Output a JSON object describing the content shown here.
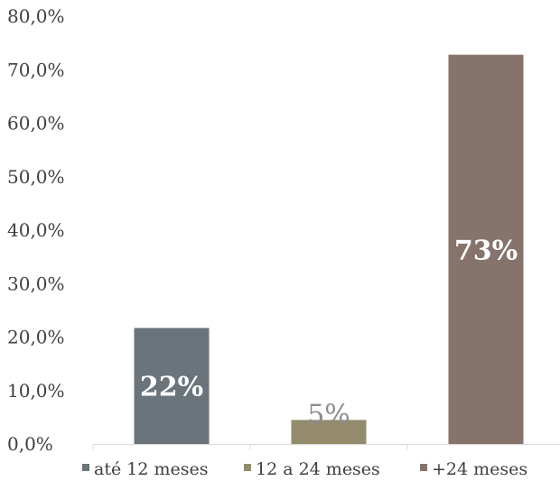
{
  "chart_data": {
    "type": "bar",
    "categories": [
      "até 12 meses",
      "12 a 24 meses",
      "+24 meses"
    ],
    "values": [
      21.7,
      4.5,
      72.8
    ],
    "data_labels": [
      "22%",
      "5%",
      "73%"
    ],
    "ylim": [
      0,
      80
    ],
    "y_ticks": [
      "0,0%",
      "10,0%",
      "20,0%",
      "30,0%",
      "40,0%",
      "50,0%",
      "60,0%",
      "70,0%",
      "80,0%"
    ],
    "y_tick_values": [
      0,
      10,
      20,
      30,
      40,
      50,
      60,
      70,
      80
    ],
    "colors": [
      "#6b747b",
      "#938b6b",
      "#86736b"
    ],
    "data_label_colors": [
      "#ffffff",
      "#8c8c8c",
      "#ffffff"
    ],
    "legend": [
      "até 12 meses",
      "12 a 24 meses",
      "+24 meses"
    ],
    "legend_position": "bottom",
    "grid": false,
    "title": "",
    "xlabel": "",
    "ylabel": ""
  }
}
